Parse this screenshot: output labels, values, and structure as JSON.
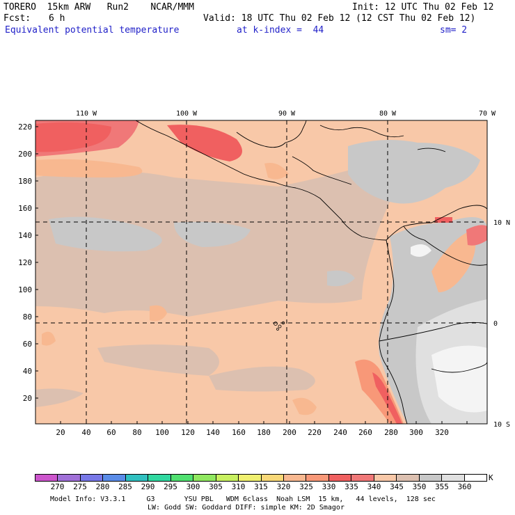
{
  "header": {
    "model_name": "TORERO  15km ARW   Run2    NCAR/MMM",
    "init": "Init: 12 UTC Thu 02 Feb 12",
    "fcst_label": "Fcst:",
    "fcst_value": "6 h",
    "valid": "Valid: 18 UTC Thu 02 Feb 12 (12 CST Thu 02 Feb 12)",
    "field_name": "Equivalent potential temperature",
    "level": "at k-index =  44",
    "smoothing": "sm= 2"
  },
  "map": {
    "lon_labels": [
      "110 W",
      "100 W",
      "90 W",
      "80 W",
      "70 W"
    ],
    "lat_labels": [
      "10 N",
      "0",
      "10 S"
    ],
    "y_ticks": [
      "220",
      "200",
      "180",
      "160",
      "140",
      "120",
      "100",
      "80",
      "60",
      "40",
      "20"
    ],
    "x_ticks": [
      "20",
      "40",
      "60",
      "80",
      "100",
      "120",
      "140",
      "160",
      "180",
      "200",
      "220",
      "240",
      "260",
      "280",
      "300",
      "320"
    ],
    "islands": "Galapagos"
  },
  "colorbar": {
    "unit": "K",
    "labels": [
      "270",
      "275",
      "280",
      "285",
      "290",
      "295",
      "300",
      "305",
      "310",
      "315",
      "320",
      "325",
      "330",
      "335",
      "340",
      "345",
      "350",
      "355",
      "360"
    ],
    "colors": [
      "#cc55cc",
      "#a070d8",
      "#7878e8",
      "#5a8ce8",
      "#30c0c0",
      "#30d8a0",
      "#50e070",
      "#90e860",
      "#c8f060",
      "#f0f070",
      "#f8d878",
      "#f8b890",
      "#f89878",
      "#f06060",
      "#f07878",
      "#f8c8a8",
      "#dcc0b0",
      "#c8c8c8",
      "#e0e0e0",
      "#ffffff"
    ]
  },
  "footer": {
    "line1": "Model Info: V3.3.1     G3       YSU PBL   WDM 6class  Noah LSM  15 km,   44 levels,  128 sec",
    "line2": "LW: Godd SW: Goddard DIFF: simple KM: 2D Smagor"
  }
}
